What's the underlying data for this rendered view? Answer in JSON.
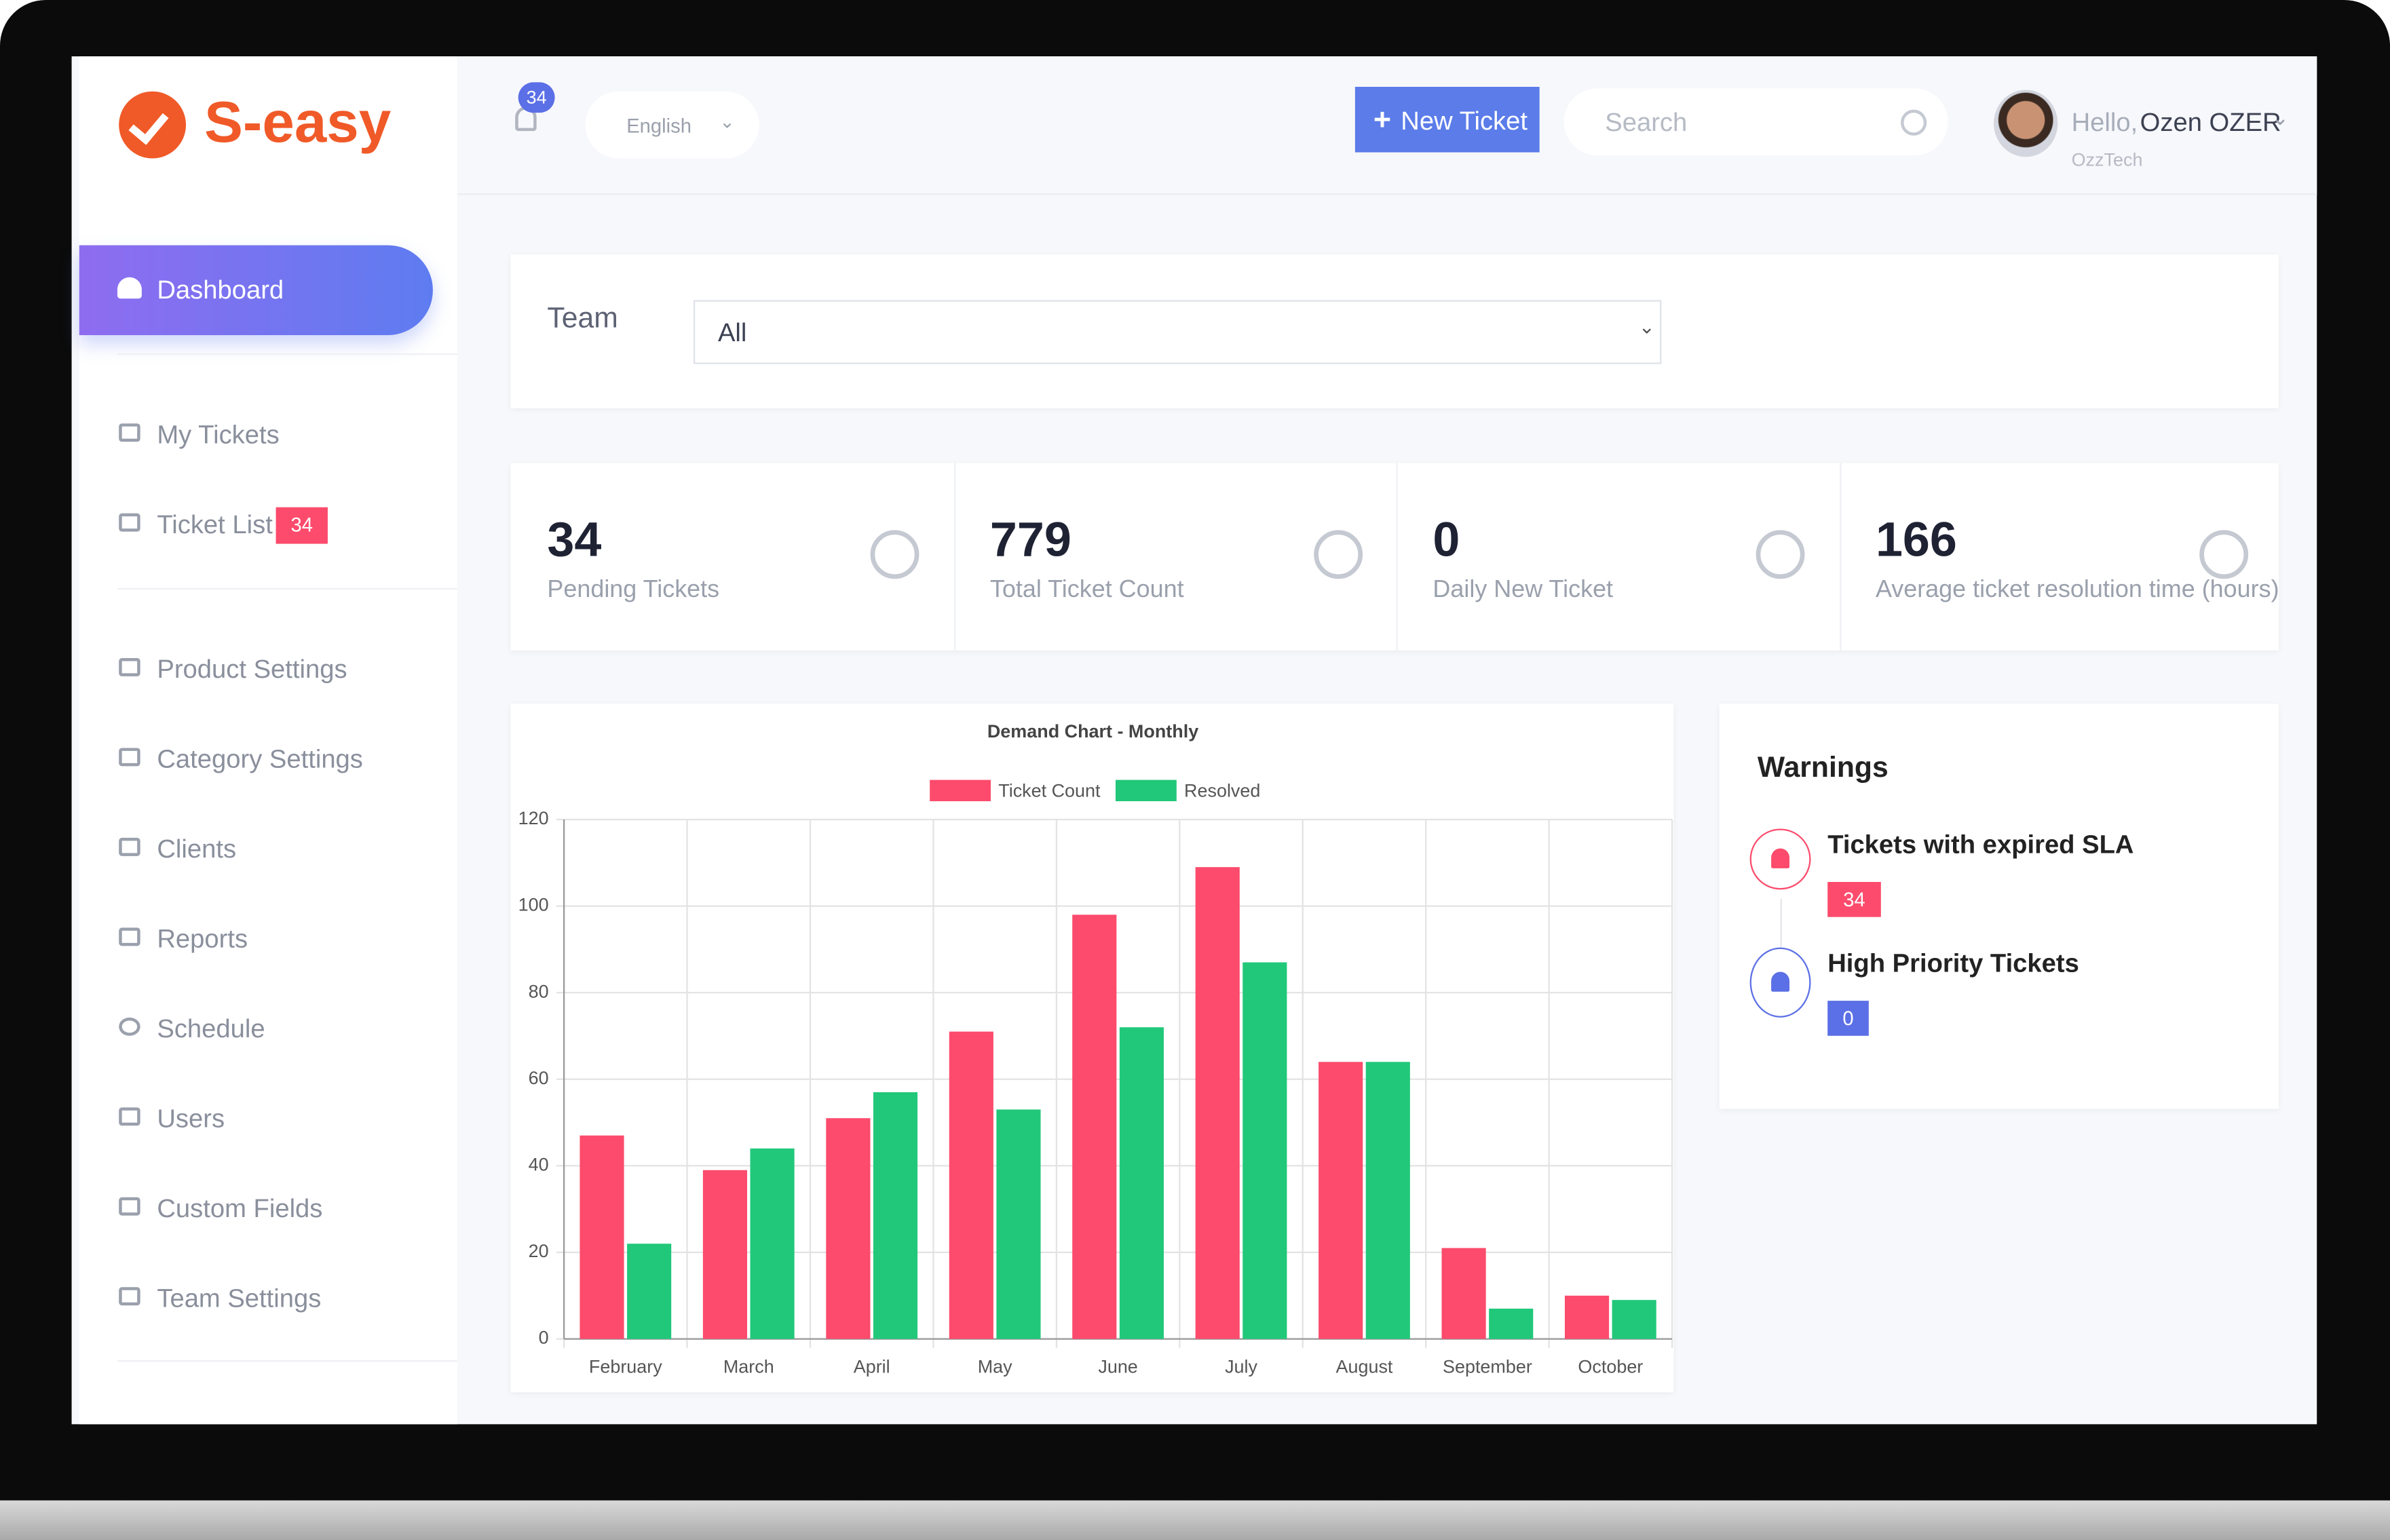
{
  "brand": "S-easy",
  "header": {
    "notification_count": 34,
    "language": "English",
    "new_ticket": "New Ticket",
    "search_placeholder": "Search",
    "greeting": "Hello,",
    "user_name": "Ozen OZER",
    "company": "OzzTech"
  },
  "sidebar": {
    "items": [
      {
        "label": "Dashboard"
      },
      {
        "label": "My Tickets"
      },
      {
        "label": "Ticket List",
        "badge": 34
      },
      {
        "label": "Product Settings"
      },
      {
        "label": "Category Settings"
      },
      {
        "label": "Clients"
      },
      {
        "label": "Reports"
      },
      {
        "label": "Schedule"
      },
      {
        "label": "Users"
      },
      {
        "label": "Custom Fields"
      },
      {
        "label": "Team Settings"
      }
    ]
  },
  "filter": {
    "label": "Team",
    "value": "All"
  },
  "stats": [
    {
      "value": 34,
      "label": "Pending Tickets"
    },
    {
      "value": 779,
      "label": "Total Ticket Count"
    },
    {
      "value": 0,
      "label": "Daily New Ticket"
    },
    {
      "value": 166,
      "label": "Average ticket resolution time (hours)"
    }
  ],
  "warnings": {
    "title": "Warnings",
    "items": [
      {
        "label": "Tickets with expired SLA",
        "count": 34
      },
      {
        "label": "High Priority Tickets",
        "count": 0
      }
    ]
  },
  "chart_data": {
    "type": "bar",
    "title": "Demand Chart - Monthly",
    "categories": [
      "February",
      "March",
      "April",
      "May",
      "June",
      "July",
      "August",
      "September",
      "October"
    ],
    "series": [
      {
        "name": "Ticket Count",
        "color": "#fc4b6c",
        "values": [
          47,
          39,
          51,
          71,
          98,
          109,
          64,
          21,
          10
        ]
      },
      {
        "name": "Resolved",
        "color": "#21c87a",
        "values": [
          22,
          44,
          57,
          53,
          72,
          87,
          64,
          7,
          9
        ]
      }
    ],
    "ylim": [
      0,
      120
    ],
    "yticks": [
      0,
      20,
      40,
      60,
      80,
      100,
      120
    ],
    "grid": true
  }
}
